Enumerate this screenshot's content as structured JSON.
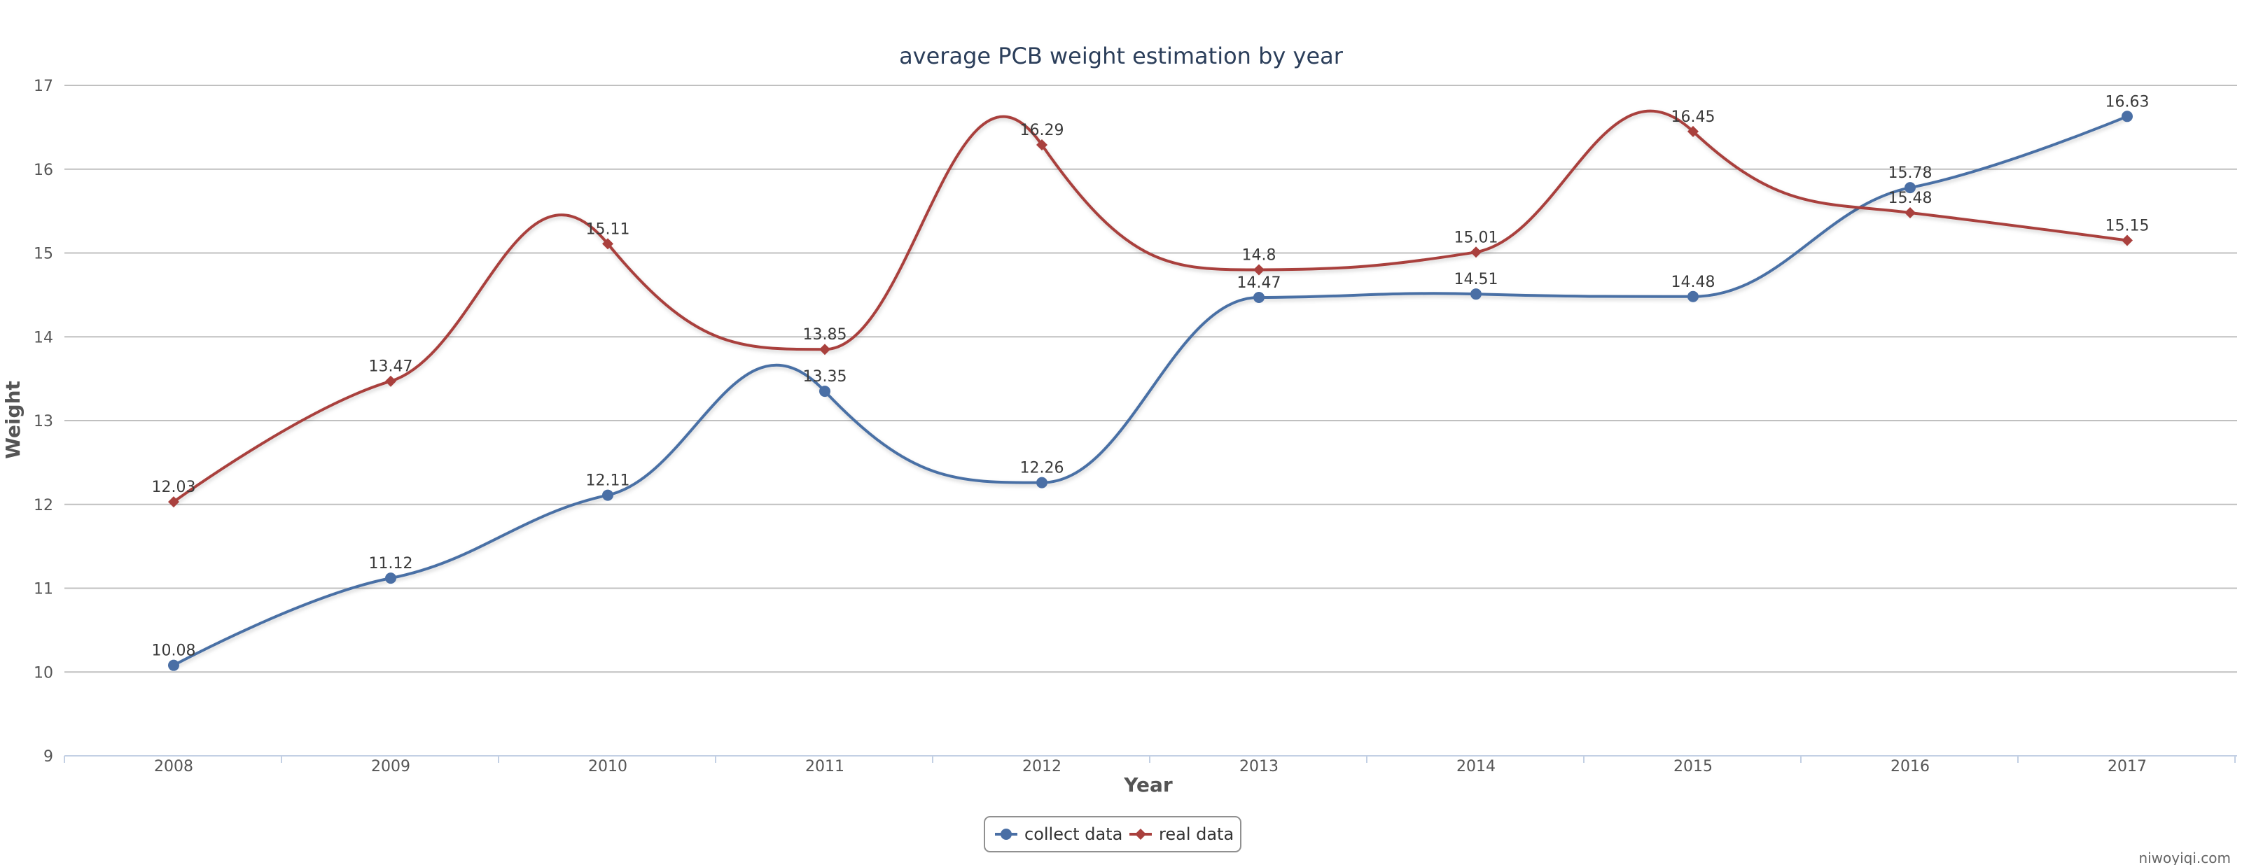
{
  "credit": "niwoyiqi.com",
  "colors": {
    "collect": "#4a6fa5",
    "real": "#a9403d",
    "grid": "#c0c0c0",
    "axis": "#c3d0e4"
  },
  "chart_data": {
    "type": "line",
    "smooth": true,
    "title": "average PCB weight estimation by year",
    "xlabel": "Year",
    "ylabel": "Weight",
    "categories": [
      "2008",
      "2009",
      "2010",
      "2011",
      "2012",
      "2013",
      "2014",
      "2015",
      "2016",
      "2017"
    ],
    "ylim": [
      9,
      17
    ],
    "yticks": [
      9,
      10,
      11,
      12,
      13,
      14,
      15,
      16,
      17
    ],
    "grid": true,
    "legend_position": "bottom-center",
    "series": [
      {
        "name": "collect data",
        "marker": "circle",
        "values": [
          10.08,
          11.12,
          12.11,
          13.35,
          12.26,
          14.47,
          14.51,
          14.48,
          15.78,
          16.63
        ],
        "labels": [
          "10.08",
          "11.12",
          "12.11",
          "13.35",
          "12.26",
          "14.47",
          "14.51",
          "14.48",
          "15.78",
          "16.63"
        ]
      },
      {
        "name": "real data",
        "marker": "diamond",
        "values": [
          12.03,
          13.47,
          15.11,
          13.85,
          16.29,
          14.8,
          15.01,
          16.45,
          15.48,
          15.15
        ],
        "labels": [
          "12.03",
          "13.47",
          "15.11",
          "13.85",
          "16.29",
          "14.8",
          "15.01",
          "16.45",
          "15.48",
          "15.15"
        ]
      }
    ]
  }
}
